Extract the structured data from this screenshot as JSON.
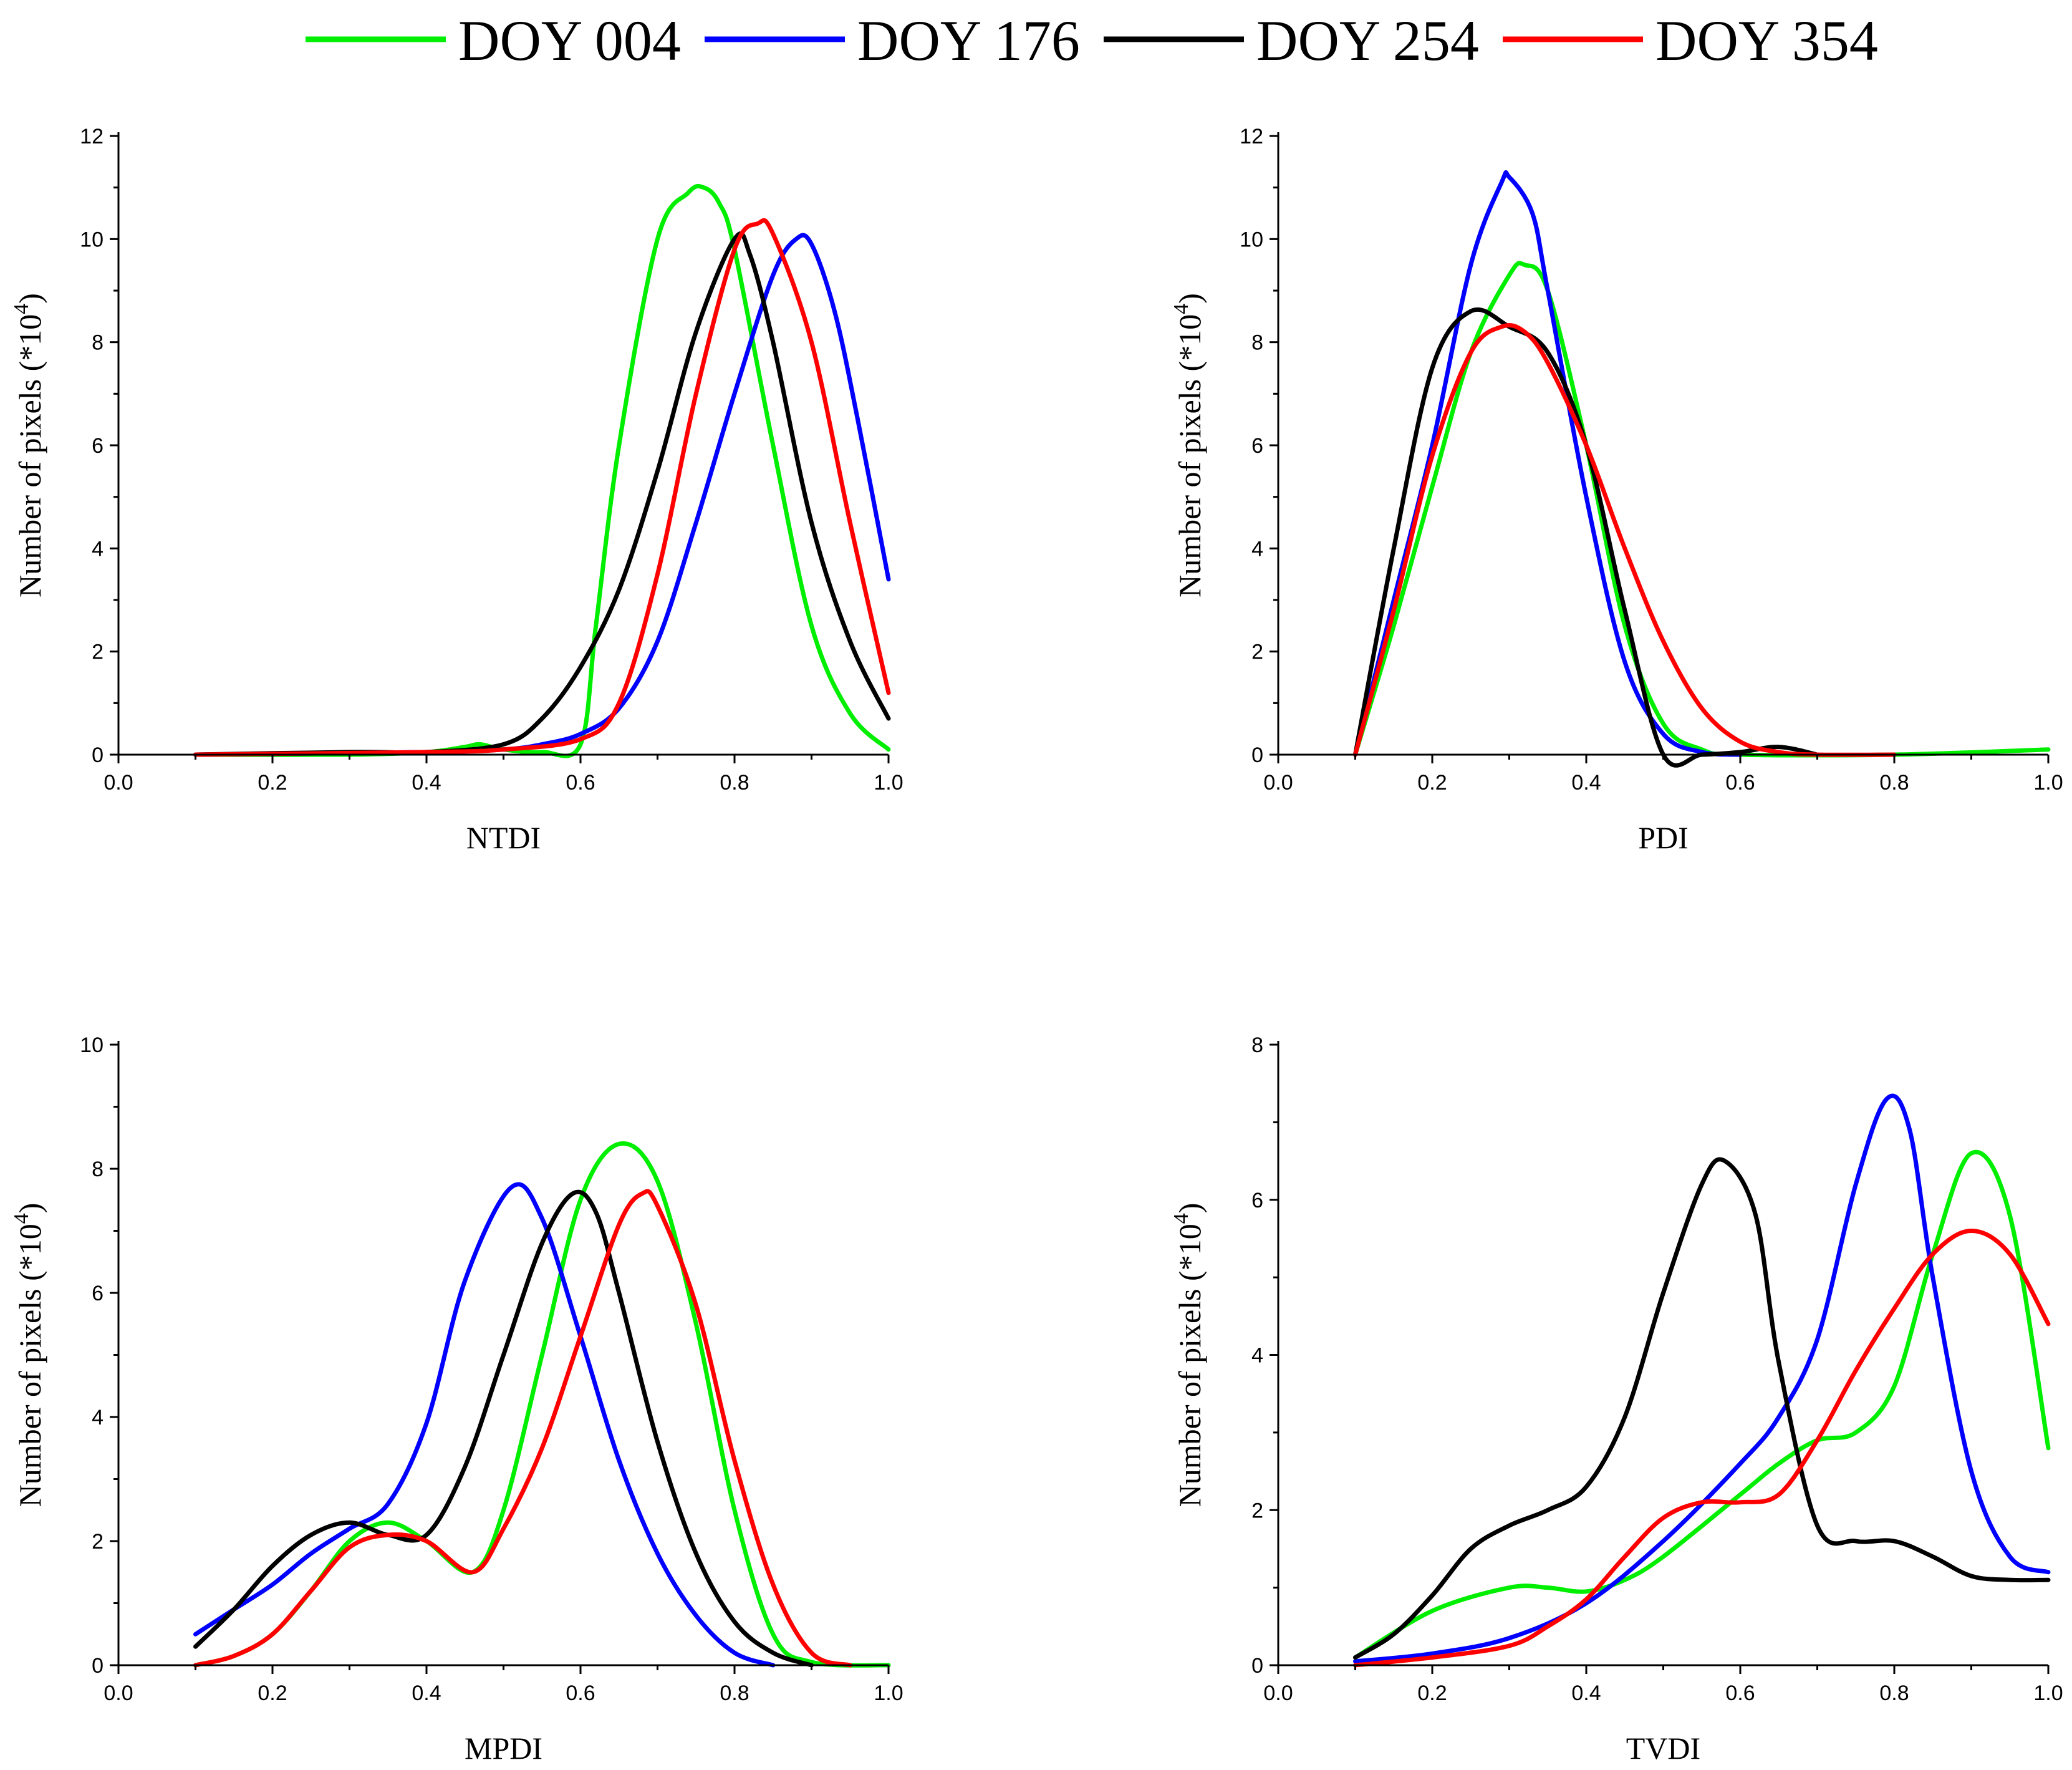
{
  "colors": {
    "doy004": "#00ee00",
    "doy176": "#0000ff",
    "doy254": "#000000",
    "doy354": "#ff0000"
  },
  "legend": [
    "DOY 004",
    "DOY 176",
    "DOY 254",
    "DOY 354"
  ],
  "chart_data": [
    {
      "type": "line",
      "xlabel": "NTDI",
      "ylabel_main": "Number of pixels (*10",
      "ylabel_sup": "4",
      "ylabel_close": ")",
      "xlim": [
        0.0,
        1.0
      ],
      "ylim": [
        0,
        12
      ],
      "xticks": [
        "0.0",
        "0.2",
        "0.4",
        "0.6",
        "0.8",
        "1.0"
      ],
      "yticks": [
        "0",
        "2",
        "4",
        "6",
        "8",
        "10",
        "12"
      ],
      "series": [
        {
          "name": "DOY 004",
          "color": "#00ee00",
          "x": [
            0.1,
            0.3,
            0.4,
            0.45,
            0.47,
            0.5,
            0.55,
            0.6,
            0.62,
            0.65,
            0.7,
            0.74,
            0.76,
            0.78,
            0.8,
            0.85,
            0.9,
            0.95,
            1.0
          ],
          "y": [
            0.0,
            0.0,
            0.05,
            0.15,
            0.2,
            0.1,
            0.05,
            0.2,
            2.5,
            6.0,
            10.0,
            10.9,
            11.0,
            10.7,
            9.8,
            6.0,
            2.5,
            0.8,
            0.1
          ]
        },
        {
          "name": "DOY 176",
          "color": "#0000ff",
          "x": [
            0.1,
            0.4,
            0.5,
            0.55,
            0.6,
            0.65,
            0.7,
            0.75,
            0.8,
            0.85,
            0.88,
            0.9,
            0.93,
            0.96,
            1.0
          ],
          "y": [
            0.0,
            0.05,
            0.1,
            0.2,
            0.4,
            0.9,
            2.2,
            4.5,
            7.0,
            9.3,
            10.0,
            9.9,
            8.6,
            6.5,
            3.4
          ]
        },
        {
          "name": "DOY 254",
          "color": "#000000",
          "x": [
            0.1,
            0.3,
            0.4,
            0.5,
            0.55,
            0.6,
            0.65,
            0.7,
            0.75,
            0.8,
            0.82,
            0.85,
            0.9,
            0.95,
            1.0
          ],
          "y": [
            0.0,
            0.05,
            0.05,
            0.2,
            0.7,
            1.7,
            3.2,
            5.5,
            8.2,
            10.0,
            9.7,
            8.0,
            4.5,
            2.2,
            0.7
          ]
        },
        {
          "name": "DOY 354",
          "color": "#ff0000",
          "x": [
            0.1,
            0.4,
            0.5,
            0.6,
            0.65,
            0.7,
            0.75,
            0.8,
            0.83,
            0.85,
            0.9,
            0.95,
            1.0
          ],
          "y": [
            0.0,
            0.05,
            0.1,
            0.3,
            1.0,
            3.5,
            7.0,
            9.8,
            10.3,
            10.1,
            8.0,
            4.5,
            1.2
          ]
        }
      ]
    },
    {
      "type": "line",
      "xlabel": "PDI",
      "ylabel_main": "Number of pixels (*10",
      "ylabel_sup": "4",
      "ylabel_close": ")",
      "xlim": [
        0.0,
        1.0
      ],
      "ylim": [
        0,
        12
      ],
      "xticks": [
        "0.0",
        "0.2",
        "0.4",
        "0.6",
        "0.8",
        "1.0"
      ],
      "yticks": [
        "0",
        "2",
        "4",
        "6",
        "8",
        "10",
        "12"
      ],
      "series": [
        {
          "name": "DOY 004",
          "color": "#00ee00",
          "x": [
            0.1,
            0.15,
            0.2,
            0.25,
            0.3,
            0.32,
            0.35,
            0.4,
            0.45,
            0.5,
            0.55,
            0.6,
            0.8,
            1.0
          ],
          "y": [
            0.0,
            2.5,
            5.2,
            7.8,
            9.3,
            9.5,
            9.0,
            6.0,
            2.5,
            0.6,
            0.1,
            0.0,
            0.0,
            0.1
          ]
        },
        {
          "name": "DOY 176",
          "color": "#0000ff",
          "x": [
            0.1,
            0.15,
            0.2,
            0.25,
            0.29,
            0.3,
            0.33,
            0.35,
            0.4,
            0.45,
            0.5,
            0.55,
            0.6
          ],
          "y": [
            0.0,
            3.0,
            6.0,
            9.5,
            11.1,
            11.2,
            10.5,
            9.0,
            5.0,
            1.8,
            0.4,
            0.05,
            0.0
          ]
        },
        {
          "name": "DOY 254",
          "color": "#000000",
          "x": [
            0.1,
            0.15,
            0.2,
            0.25,
            0.3,
            0.35,
            0.4,
            0.45,
            0.5,
            0.55,
            0.6,
            0.65,
            0.7
          ],
          "y": [
            0.0,
            4.0,
            7.5,
            8.6,
            8.3,
            7.8,
            6.0,
            2.8,
            0.0,
            0.0,
            0.05,
            0.15,
            0.0
          ]
        },
        {
          "name": "DOY 354",
          "color": "#ff0000",
          "x": [
            0.1,
            0.15,
            0.2,
            0.25,
            0.29,
            0.32,
            0.35,
            0.4,
            0.45,
            0.5,
            0.55,
            0.6,
            0.65,
            0.7,
            0.8
          ],
          "y": [
            0.0,
            2.8,
            5.8,
            7.8,
            8.3,
            8.2,
            7.6,
            6.0,
            4.0,
            2.2,
            0.9,
            0.25,
            0.05,
            0.0,
            0.0
          ]
        }
      ]
    },
    {
      "type": "line",
      "xlabel": "MPDI",
      "ylabel_main": "Number of pixels (*10",
      "ylabel_sup": "4",
      "ylabel_close": ")",
      "xlim": [
        0.0,
        1.0
      ],
      "ylim": [
        0,
        10
      ],
      "xticks": [
        "0.0",
        "0.2",
        "0.4",
        "0.6",
        "0.8",
        "1.0"
      ],
      "yticks": [
        "0",
        "2",
        "4",
        "6",
        "8",
        "10"
      ],
      "series": [
        {
          "name": "DOY 004",
          "color": "#00ee00",
          "x": [
            0.1,
            0.15,
            0.2,
            0.25,
            0.3,
            0.35,
            0.4,
            0.46,
            0.5,
            0.55,
            0.6,
            0.65,
            0.7,
            0.75,
            0.8,
            0.85,
            0.9,
            1.0
          ],
          "y": [
            0.0,
            0.15,
            0.5,
            1.2,
            2.0,
            2.3,
            2.0,
            1.5,
            2.5,
            5.0,
            7.5,
            8.4,
            7.8,
            5.5,
            2.5,
            0.5,
            0.05,
            0.0
          ]
        },
        {
          "name": "DOY 176",
          "color": "#0000ff",
          "x": [
            0.1,
            0.15,
            0.2,
            0.25,
            0.3,
            0.35,
            0.4,
            0.45,
            0.51,
            0.55,
            0.6,
            0.65,
            0.7,
            0.75,
            0.8,
            0.85
          ],
          "y": [
            0.5,
            0.9,
            1.3,
            1.8,
            2.2,
            2.6,
            3.9,
            6.2,
            7.7,
            7.2,
            5.3,
            3.3,
            1.8,
            0.8,
            0.2,
            0.0
          ]
        },
        {
          "name": "DOY 254",
          "color": "#000000",
          "x": [
            0.1,
            0.15,
            0.2,
            0.25,
            0.3,
            0.35,
            0.4,
            0.45,
            0.5,
            0.55,
            0.59,
            0.62,
            0.65,
            0.7,
            0.75,
            0.8,
            0.85,
            0.9
          ],
          "y": [
            0.3,
            0.9,
            1.6,
            2.1,
            2.3,
            2.1,
            2.1,
            3.2,
            5.0,
            6.8,
            7.6,
            7.3,
            6.0,
            3.6,
            1.8,
            0.7,
            0.2,
            0.0
          ]
        },
        {
          "name": "DOY 354",
          "color": "#ff0000",
          "x": [
            0.1,
            0.15,
            0.2,
            0.25,
            0.3,
            0.35,
            0.4,
            0.46,
            0.5,
            0.55,
            0.6,
            0.65,
            0.68,
            0.7,
            0.75,
            0.8,
            0.85,
            0.9,
            0.95
          ],
          "y": [
            0.0,
            0.15,
            0.5,
            1.2,
            1.9,
            2.1,
            2.0,
            1.5,
            2.2,
            3.5,
            5.3,
            7.1,
            7.6,
            7.4,
            5.8,
            3.3,
            1.3,
            0.2,
            0.0
          ]
        }
      ]
    },
    {
      "type": "line",
      "xlabel": "TVDI",
      "ylabel_main": "Number of pixels (*10",
      "ylabel_sup": "4",
      "ylabel_close": ")",
      "xlim": [
        0.0,
        1.0
      ],
      "ylim": [
        0,
        8
      ],
      "xticks": [
        "0.0",
        "0.2",
        "0.4",
        "0.6",
        "0.8",
        "1.0"
      ],
      "yticks": [
        "0",
        "2",
        "4",
        "6",
        "8"
      ],
      "series": [
        {
          "name": "DOY 004",
          "color": "#00ee00",
          "x": [
            0.1,
            0.2,
            0.3,
            0.35,
            0.4,
            0.45,
            0.5,
            0.6,
            0.65,
            0.7,
            0.75,
            0.8,
            0.85,
            0.9,
            0.95,
            1.0
          ],
          "y": [
            0.1,
            0.7,
            1.0,
            1.0,
            0.95,
            1.1,
            1.4,
            2.2,
            2.6,
            2.9,
            3.0,
            3.6,
            5.3,
            6.6,
            5.8,
            2.8
          ]
        },
        {
          "name": "DOY 176",
          "color": "#0000ff",
          "x": [
            0.1,
            0.2,
            0.3,
            0.4,
            0.5,
            0.6,
            0.65,
            0.7,
            0.75,
            0.79,
            0.82,
            0.85,
            0.9,
            0.95,
            1.0
          ],
          "y": [
            0.05,
            0.15,
            0.35,
            0.8,
            1.6,
            2.6,
            3.2,
            4.2,
            6.2,
            7.3,
            6.9,
            5.0,
            2.5,
            1.4,
            1.2
          ]
        },
        {
          "name": "DOY 254",
          "color": "#000000",
          "x": [
            0.1,
            0.15,
            0.2,
            0.25,
            0.3,
            0.35,
            0.4,
            0.45,
            0.5,
            0.55,
            0.58,
            0.62,
            0.65,
            0.7,
            0.75,
            0.8,
            0.85,
            0.9,
            0.95,
            1.0
          ],
          "y": [
            0.1,
            0.4,
            0.9,
            1.5,
            1.8,
            2.0,
            2.3,
            3.2,
            4.8,
            6.2,
            6.5,
            5.8,
            3.9,
            1.8,
            1.6,
            1.6,
            1.4,
            1.15,
            1.1,
            1.1
          ]
        },
        {
          "name": "DOY 354",
          "color": "#ff0000",
          "x": [
            0.1,
            0.2,
            0.3,
            0.35,
            0.4,
            0.45,
            0.5,
            0.55,
            0.6,
            0.65,
            0.7,
            0.75,
            0.8,
            0.85,
            0.9,
            0.95,
            1.0
          ],
          "y": [
            0.0,
            0.1,
            0.25,
            0.5,
            0.85,
            1.4,
            1.9,
            2.1,
            2.1,
            2.2,
            2.9,
            3.8,
            4.6,
            5.3,
            5.6,
            5.3,
            4.4
          ]
        }
      ]
    }
  ]
}
